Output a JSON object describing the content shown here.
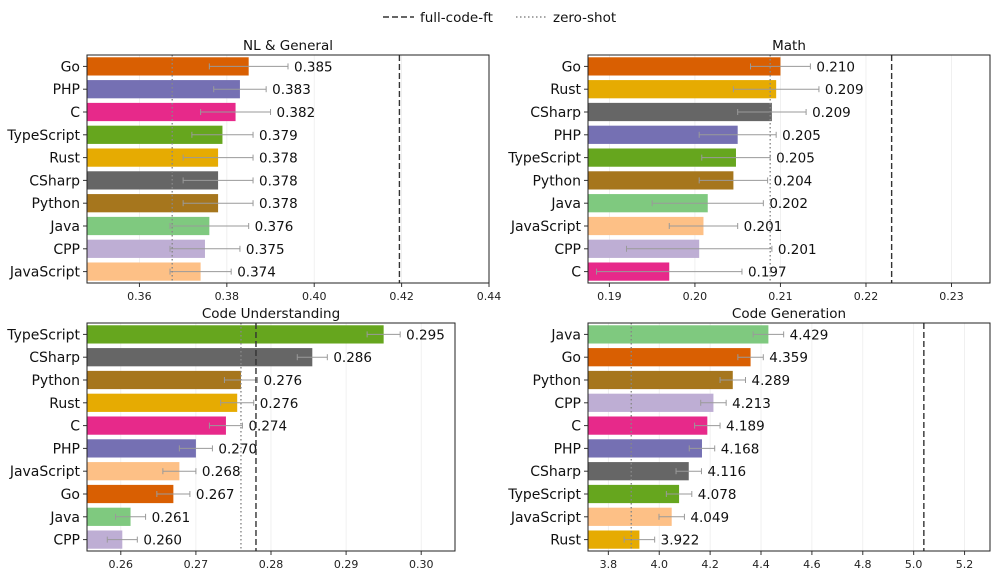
{
  "legend": {
    "items": [
      {
        "label": "full-code-ft",
        "style": "dashed",
        "color": "#333333"
      },
      {
        "label": "zero-shot",
        "style": "dotted",
        "color": "#888888"
      }
    ]
  },
  "colors": {
    "Go": "#d95f02",
    "PHP": "#7570b3",
    "C": "#e7298a",
    "TypeScript": "#66a61e",
    "Rust": "#e6ab02",
    "CSharp": "#666666",
    "Python": "#a6761d",
    "Java": "#7fc97f",
    "CPP": "#beaed4",
    "JavaScript": "#fdc086"
  },
  "chart_data": [
    {
      "type": "bar",
      "orientation": "horizontal",
      "title": "NL & General",
      "categories": [
        "Go",
        "PHP",
        "C",
        "TypeScript",
        "Rust",
        "CSharp",
        "Python",
        "Java",
        "CPP",
        "JavaScript"
      ],
      "values": [
        0.385,
        0.383,
        0.382,
        0.379,
        0.378,
        0.378,
        0.378,
        0.376,
        0.375,
        0.374
      ],
      "value_labels": [
        "0.385",
        "0.383",
        "0.382",
        "0.379",
        "0.378",
        "0.378",
        "0.378",
        "0.376",
        "0.375",
        "0.374"
      ],
      "errors": [
        0.009,
        0.006,
        0.008,
        0.007,
        0.008,
        0.008,
        0.008,
        0.009,
        0.008,
        0.007
      ],
      "xlim": [
        0.348,
        0.44
      ],
      "xticks": [
        0.36,
        0.38,
        0.4,
        0.42,
        0.44
      ],
      "xtick_labels": [
        "0.36",
        "0.38",
        "0.40",
        "0.42",
        "0.44"
      ],
      "full_code_ft": 0.4195,
      "zero_shot": 0.3675,
      "grid": true
    },
    {
      "type": "bar",
      "orientation": "horizontal",
      "title": "Math",
      "categories": [
        "Go",
        "Rust",
        "CSharp",
        "PHP",
        "TypeScript",
        "Python",
        "Java",
        "JavaScript",
        "CPP",
        "C"
      ],
      "values": [
        0.21,
        0.2095,
        0.209,
        0.205,
        0.2048,
        0.2045,
        0.2015,
        0.201,
        0.2005,
        0.197
      ],
      "value_labels": [
        "0.210",
        "0.209",
        "0.209",
        "0.205",
        "0.205",
        "0.204",
        "0.202",
        "0.201",
        "0.201",
        "0.197"
      ],
      "errors": [
        0.0035,
        0.005,
        0.004,
        0.0045,
        0.004,
        0.004,
        0.0065,
        0.004,
        0.0085,
        0.0085
      ],
      "xlim": [
        0.1875,
        0.2345
      ],
      "xticks": [
        0.19,
        0.2,
        0.21,
        0.22,
        0.23
      ],
      "xtick_labels": [
        "0.19",
        "0.20",
        "0.21",
        "0.22",
        "0.23"
      ],
      "full_code_ft": 0.223,
      "zero_shot": 0.2088,
      "grid": true
    },
    {
      "type": "bar",
      "orientation": "horizontal",
      "title": "Code Understanding",
      "categories": [
        "TypeScript",
        "CSharp",
        "Python",
        "Rust",
        "C",
        "PHP",
        "JavaScript",
        "Go",
        "Java",
        "CPP"
      ],
      "values": [
        0.295,
        0.2855,
        0.276,
        0.2755,
        0.274,
        0.27,
        0.2678,
        0.267,
        0.2613,
        0.2602
      ],
      "value_labels": [
        "0.295",
        "0.286",
        "0.276",
        "0.276",
        "0.274",
        "0.270",
        "0.268",
        "0.267",
        "0.261",
        "0.260"
      ],
      "errors": [
        0.0022,
        0.002,
        0.0022,
        0.0022,
        0.0022,
        0.0022,
        0.0022,
        0.0022,
        0.002,
        0.002
      ],
      "xlim": [
        0.2555,
        0.3045
      ],
      "xticks": [
        0.26,
        0.27,
        0.28,
        0.29,
        0.3
      ],
      "xtick_labels": [
        "0.26",
        "0.27",
        "0.28",
        "0.29",
        "0.30"
      ],
      "full_code_ft": 0.278,
      "zero_shot": 0.276,
      "grid": true
    },
    {
      "type": "bar",
      "orientation": "horizontal",
      "title": "Code Generation",
      "categories": [
        "Java",
        "Go",
        "Python",
        "CPP",
        "C",
        "PHP",
        "CSharp",
        "TypeScript",
        "JavaScript",
        "Rust"
      ],
      "values": [
        4.429,
        4.359,
        4.289,
        4.213,
        4.189,
        4.168,
        4.116,
        4.078,
        4.049,
        3.922
      ],
      "value_labels": [
        "4.429",
        "4.359",
        "4.289",
        "4.213",
        "4.189",
        "4.168",
        "4.116",
        "4.078",
        "4.049",
        "3.922"
      ],
      "errors": [
        0.06,
        0.05,
        0.05,
        0.05,
        0.05,
        0.05,
        0.05,
        0.05,
        0.05,
        0.06
      ],
      "xlim": [
        3.72,
        5.3
      ],
      "xticks": [
        3.8,
        4.0,
        4.2,
        4.4,
        4.6,
        4.8,
        5.0,
        5.2
      ],
      "xtick_labels": [
        "3.8",
        "4.0",
        "4.2",
        "4.4",
        "4.6",
        "4.8",
        "5.0",
        "5.2"
      ],
      "full_code_ft": 5.04,
      "zero_shot": 3.89,
      "grid": true
    }
  ]
}
